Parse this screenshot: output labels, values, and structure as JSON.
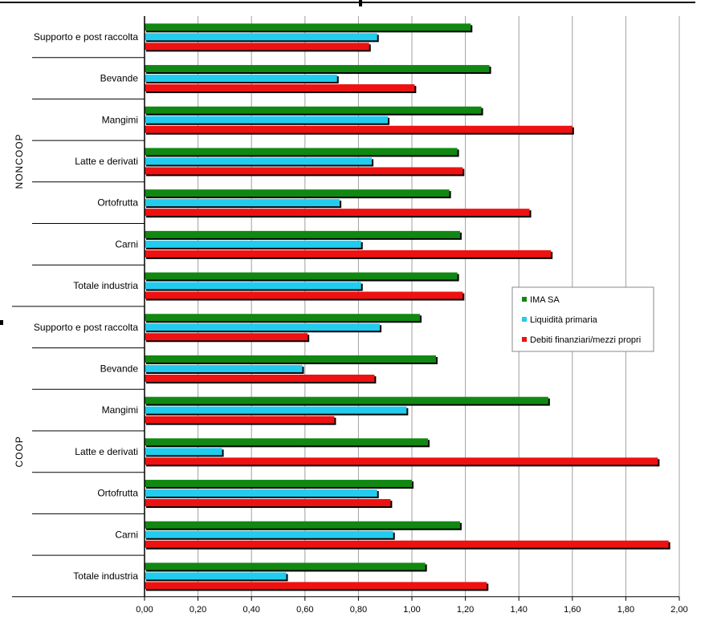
{
  "chart_data": {
    "type": "bar",
    "orientation": "horizontal",
    "title": "",
    "xlabel": "",
    "ylabel": "",
    "xlim": [
      0,
      2.0
    ],
    "grid": "vertical",
    "legend_position": "center-right",
    "ticks": [
      "0,00",
      "0,20",
      "0,40",
      "0,60",
      "0,80",
      "1,00",
      "1,20",
      "1,40",
      "1,60",
      "1,80",
      "2,00"
    ],
    "groups": [
      {
        "label": "NONCOOP",
        "categories": [
          "Supporto e post raccolta",
          "Bevande",
          "Mangimi",
          "Latte e derivati",
          "Ortofrutta",
          "Carni",
          "Totale industria"
        ],
        "series": [
          {
            "name": "IMA SA",
            "color": "#118811",
            "values": [
              1.22,
              1.29,
              1.26,
              1.17,
              1.14,
              1.18,
              1.17
            ]
          },
          {
            "name": "Liquidità primaria",
            "color": "#22ccee",
            "values": [
              0.87,
              0.72,
              0.91,
              0.85,
              0.73,
              0.81,
              0.81
            ]
          },
          {
            "name": "Debiti finanziari/mezzi propri",
            "color": "#ee1111",
            "values": [
              0.84,
              1.01,
              1.6,
              1.19,
              1.44,
              1.52,
              1.19
            ]
          }
        ]
      },
      {
        "label": "COOP",
        "categories": [
          "Supporto e post raccolta",
          "Bevande",
          "Mangimi",
          "Latte e derivati",
          "Ortofrutta",
          "Carni",
          "Totale industria"
        ],
        "series": [
          {
            "name": "IMA SA",
            "color": "#118811",
            "values": [
              1.03,
              1.09,
              1.51,
              1.06,
              1.0,
              1.18,
              1.05
            ]
          },
          {
            "name": "Liquidità primaria",
            "color": "#22ccee",
            "values": [
              0.88,
              0.59,
              0.98,
              0.29,
              0.87,
              0.93,
              0.53
            ]
          },
          {
            "name": "Debiti finanziari/mezzi propri",
            "color": "#ee1111",
            "values": [
              0.61,
              0.86,
              0.71,
              1.92,
              0.92,
              1.96,
              1.28
            ]
          }
        ]
      }
    ],
    "legend": [
      "IMA SA",
      "Liquidità primaria",
      "Debiti finanziari/mezzi propri"
    ]
  }
}
